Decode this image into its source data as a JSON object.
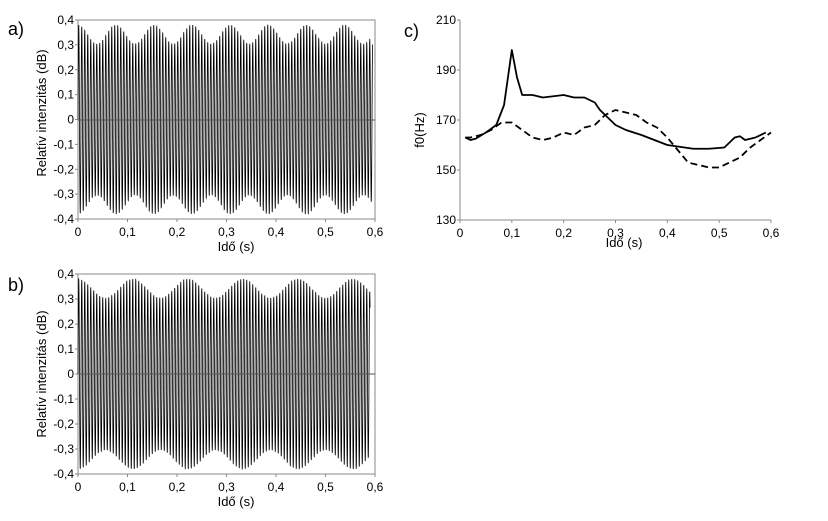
{
  "chart_data": [
    {
      "type": "line",
      "panel_label": "a)",
      "xlabel": "Idő (s)",
      "ylabel": "Relatív intenzitás (dB)",
      "xlim": [
        0,
        0.6
      ],
      "ylim": [
        -0.4,
        0.4
      ],
      "xticks": [
        "0",
        "0,1",
        "0,2",
        "0,3",
        "0,4",
        "0,5",
        "0,6"
      ],
      "yticks": [
        "-0,4",
        "-0,3",
        "-0,2",
        "-0,1",
        "0",
        "0,1",
        "0,2",
        "0,3",
        "0,4"
      ],
      "signal_duration_s": 0.595,
      "amplitude": 0.38,
      "carrier_frequency_hz": 165,
      "beat_frequency_hz": 13,
      "zero_line": true
    },
    {
      "type": "line",
      "panel_label": "b)",
      "xlabel": "Idő (s)",
      "ylabel": "Relatív intenzitás (dB)",
      "xlim": [
        0,
        0.6
      ],
      "ylim": [
        -0.4,
        0.4
      ],
      "xticks": [
        "0",
        "0,1",
        "0,2",
        "0,3",
        "0,4",
        "0,5",
        "0,6"
      ],
      "yticks": [
        "-0,4",
        "-0,3",
        "-0,2",
        "-0,1",
        "0",
        "0,1",
        "0,2",
        "0,3",
        "0,4"
      ],
      "signal_duration_s": 0.59,
      "amplitude": 0.38,
      "carrier_frequency_hz": 165,
      "beat_frequency_hz": 9,
      "zero_line": true
    },
    {
      "type": "line",
      "panel_label": "c)",
      "xlabel": "Idő (s)",
      "ylabel": "f0(Hz)",
      "xlim": [
        0,
        0.6
      ],
      "ylim": [
        130,
        210
      ],
      "xticks": [
        "0",
        "0,1",
        "0,2",
        "0,3",
        "0,4",
        "0,5",
        "0,6"
      ],
      "yticks": [
        "130",
        "150",
        "170",
        "190",
        "210"
      ],
      "series": [
        {
          "style": "solid",
          "x": [
            0.01,
            0.02,
            0.03,
            0.05,
            0.07,
            0.085,
            0.1,
            0.11,
            0.12,
            0.14,
            0.16,
            0.18,
            0.2,
            0.22,
            0.24,
            0.26,
            0.27,
            0.28,
            0.3,
            0.32,
            0.35,
            0.4,
            0.45,
            0.48,
            0.51,
            0.53,
            0.54,
            0.55,
            0.57,
            0.59
          ],
          "y": [
            163,
            162,
            162.5,
            165,
            168,
            176,
            198,
            187,
            180,
            180,
            179,
            179.5,
            180,
            179,
            179,
            177,
            174,
            172,
            168,
            166,
            164,
            160,
            158.5,
            158.5,
            159,
            163,
            163.5,
            162,
            163,
            165
          ]
        },
        {
          "style": "dashed",
          "x": [
            0.01,
            0.02,
            0.04,
            0.06,
            0.08,
            0.1,
            0.12,
            0.14,
            0.16,
            0.18,
            0.2,
            0.22,
            0.24,
            0.26,
            0.28,
            0.3,
            0.32,
            0.34,
            0.36,
            0.38,
            0.4,
            0.42,
            0.44,
            0.46,
            0.48,
            0.5,
            0.52,
            0.54,
            0.56,
            0.58,
            0.6
          ],
          "y": [
            163,
            163,
            164,
            166,
            169,
            169,
            166,
            163,
            162,
            163,
            165,
            164,
            167,
            168,
            172,
            174,
            173,
            172,
            169,
            167,
            163,
            158,
            153,
            152,
            151,
            151,
            153,
            155,
            159,
            162,
            165
          ]
        }
      ]
    }
  ]
}
